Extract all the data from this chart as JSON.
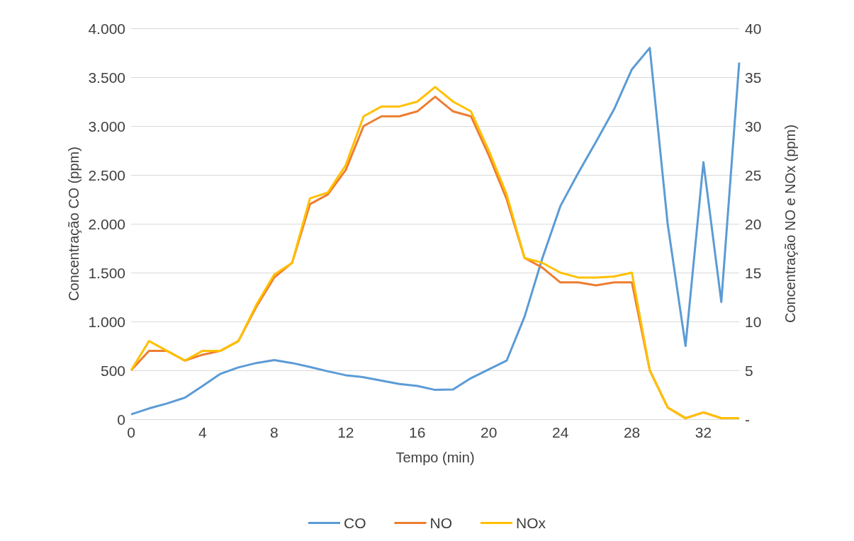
{
  "chart_data": {
    "type": "line",
    "xlabel": "Tempo (min)",
    "ylabel": "Concentração CO (ppm)",
    "y2label": "Concentração NO e NOx (ppm)",
    "x": [
      0,
      1,
      2,
      3,
      4,
      5,
      6,
      7,
      8,
      9,
      10,
      11,
      12,
      13,
      14,
      15,
      16,
      17,
      18,
      19,
      20,
      21,
      22,
      23,
      24,
      25,
      26,
      27,
      28,
      29,
      30,
      31,
      32,
      33,
      34
    ],
    "xlim": [
      0,
      34
    ],
    "xticks": [
      0,
      4,
      8,
      12,
      16,
      20,
      24,
      28,
      32
    ],
    "ylim": [
      0,
      4000
    ],
    "yticks": [
      0,
      500,
      {
        "value": 1000,
        "label": "1.000"
      },
      {
        "value": 1500,
        "label": "1.500"
      },
      {
        "value": 2000,
        "label": "2.000"
      },
      {
        "value": 2500,
        "label": "2.500"
      },
      {
        "value": 3000,
        "label": "3.000"
      },
      {
        "value": 3500,
        "label": "3.500"
      },
      {
        "value": 4000,
        "label": "4.000"
      }
    ],
    "y2lim": [
      0,
      40
    ],
    "y2ticks": [
      {
        "value": 0,
        "label": "-"
      },
      5,
      10,
      15,
      20,
      25,
      30,
      35,
      40
    ],
    "series": [
      {
        "name": "CO",
        "color": "#5b9bd5",
        "values": [
          50,
          110,
          160,
          220,
          340,
          465,
          530,
          575,
          605,
          575,
          535,
          490,
          450,
          430,
          395,
          360,
          340,
          300,
          305,
          420,
          510,
          600,
          1050,
          1650,
          2180,
          2520,
          2840,
          3170,
          3580,
          3800,
          2000,
          750,
          2630,
          1200,
          3650
        ]
      },
      {
        "name": "NO",
        "color": "#ed7d31",
        "axis": "y2",
        "values": [
          5,
          7,
          7,
          6,
          6.6,
          7,
          8,
          11.5,
          14.5,
          16,
          22,
          23,
          25.5,
          30,
          31,
          31,
          31.5,
          33,
          31.5,
          31,
          27,
          22.5,
          16.5,
          15.5,
          14,
          14,
          13.7,
          14,
          14,
          5,
          1.2,
          0.1,
          0.7,
          0.1,
          0.1
        ]
      },
      {
        "name": "NOx",
        "color": "#ffc000",
        "axis": "y2",
        "values": [
          5,
          8,
          7,
          6,
          7,
          7,
          8,
          11.7,
          14.8,
          16,
          22.6,
          23.2,
          26,
          31,
          32,
          32,
          32.5,
          34,
          32.5,
          31.5,
          27.5,
          23,
          16.5,
          16,
          15,
          14.5,
          14.5,
          14.6,
          15,
          5,
          1.2,
          0.1,
          0.7,
          0.1,
          0.1
        ]
      }
    ],
    "grid": "y",
    "legend": "bottom",
    "marker": "none",
    "line_style": "solid"
  }
}
